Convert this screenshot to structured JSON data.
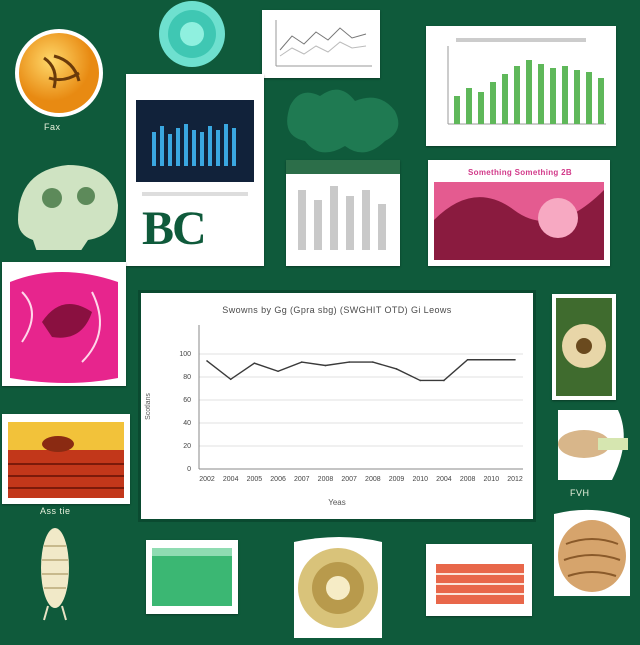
{
  "collage": {
    "bc_label": "BC",
    "captions": {
      "top_left": "Fax",
      "mid_right": "FVH",
      "worm_label": "Ass tie"
    },
    "pink_card_title": "Something Something 2B"
  },
  "colors": {
    "background": "#0f5a3b",
    "line": "#3a3a3a",
    "pink": "#e0258a",
    "green_bar": "#5fb85a",
    "teal": "#6ee0cf"
  },
  "chart_data": {
    "type": "line",
    "title": "Swowns by Gg (Gpra sbg) (SWGHIT OTD) Gi Leows",
    "xlabel": "Yeas",
    "ylabel": "Scotlans",
    "categories": [
      "2002",
      "2004",
      "2005",
      "2006",
      "2007",
      "2008",
      "2007",
      "2008",
      "2009",
      "2010",
      "2004",
      "2008",
      "2010",
      "2012"
    ],
    "values": [
      94,
      78,
      92,
      85,
      93,
      90,
      93,
      93,
      87,
      77,
      77,
      95,
      95,
      95
    ],
    "y_ticks": [
      "0",
      "20",
      "40",
      "60",
      "80",
      "100"
    ],
    "ylim": [
      0,
      120
    ],
    "grid": true
  }
}
